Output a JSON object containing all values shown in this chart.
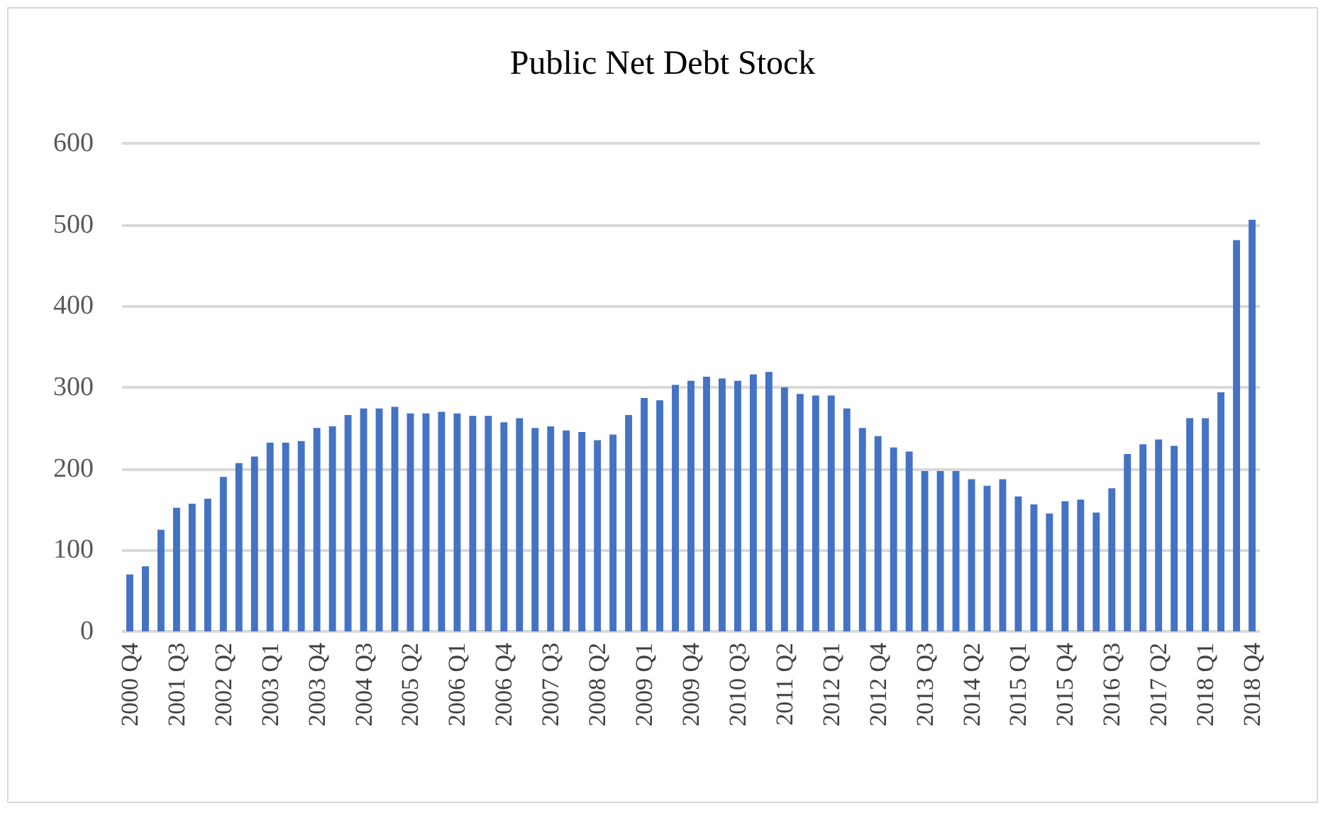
{
  "chart_data": {
    "type": "bar",
    "title": "Public Net Debt Stock",
    "categories": [
      "2000 Q4",
      null,
      null,
      "2001 Q3",
      null,
      null,
      "2002 Q2",
      null,
      null,
      "2003 Q1",
      null,
      null,
      "2003 Q4",
      null,
      null,
      "2004 Q3",
      null,
      null,
      "2005 Q2",
      null,
      null,
      "2006 Q1",
      null,
      null,
      "2006 Q4",
      null,
      null,
      "2007 Q3",
      null,
      null,
      "2008 Q2",
      null,
      null,
      "2009 Q1",
      null,
      null,
      "2009 Q4",
      null,
      null,
      "2010 Q3",
      null,
      null,
      "2011 Q2",
      null,
      null,
      "2012 Q1",
      null,
      null,
      "2012 Q4",
      null,
      null,
      "2013 Q3",
      null,
      null,
      "2014 Q2",
      null,
      null,
      "2015 Q1",
      null,
      null,
      "2015 Q4",
      null,
      null,
      "2016 Q3",
      null,
      null,
      "2017 Q2",
      null,
      null,
      "2018 Q1",
      null,
      null,
      "2018 Q4"
    ],
    "values": [
      70,
      80,
      125,
      152,
      157,
      163,
      190,
      207,
      215,
      232,
      232,
      234,
      250,
      252,
      266,
      274,
      274,
      276,
      268,
      268,
      270,
      268,
      265,
      265,
      257,
      262,
      250,
      252,
      247,
      245,
      235,
      242,
      266,
      287,
      284,
      303,
      308,
      313,
      311,
      308,
      316,
      319,
      300,
      292,
      290,
      290,
      274,
      250,
      240,
      226,
      221,
      197,
      197,
      197,
      187,
      179,
      187,
      166,
      156,
      145,
      160,
      162,
      146,
      176,
      218,
      230,
      236,
      228,
      262,
      262,
      294,
      481,
      506
    ],
    "color": "#4472c4",
    "ylim": [
      0,
      600
    ],
    "yticks": [
      0,
      100,
      200,
      300,
      400,
      500,
      600
    ],
    "grid": "y"
  }
}
